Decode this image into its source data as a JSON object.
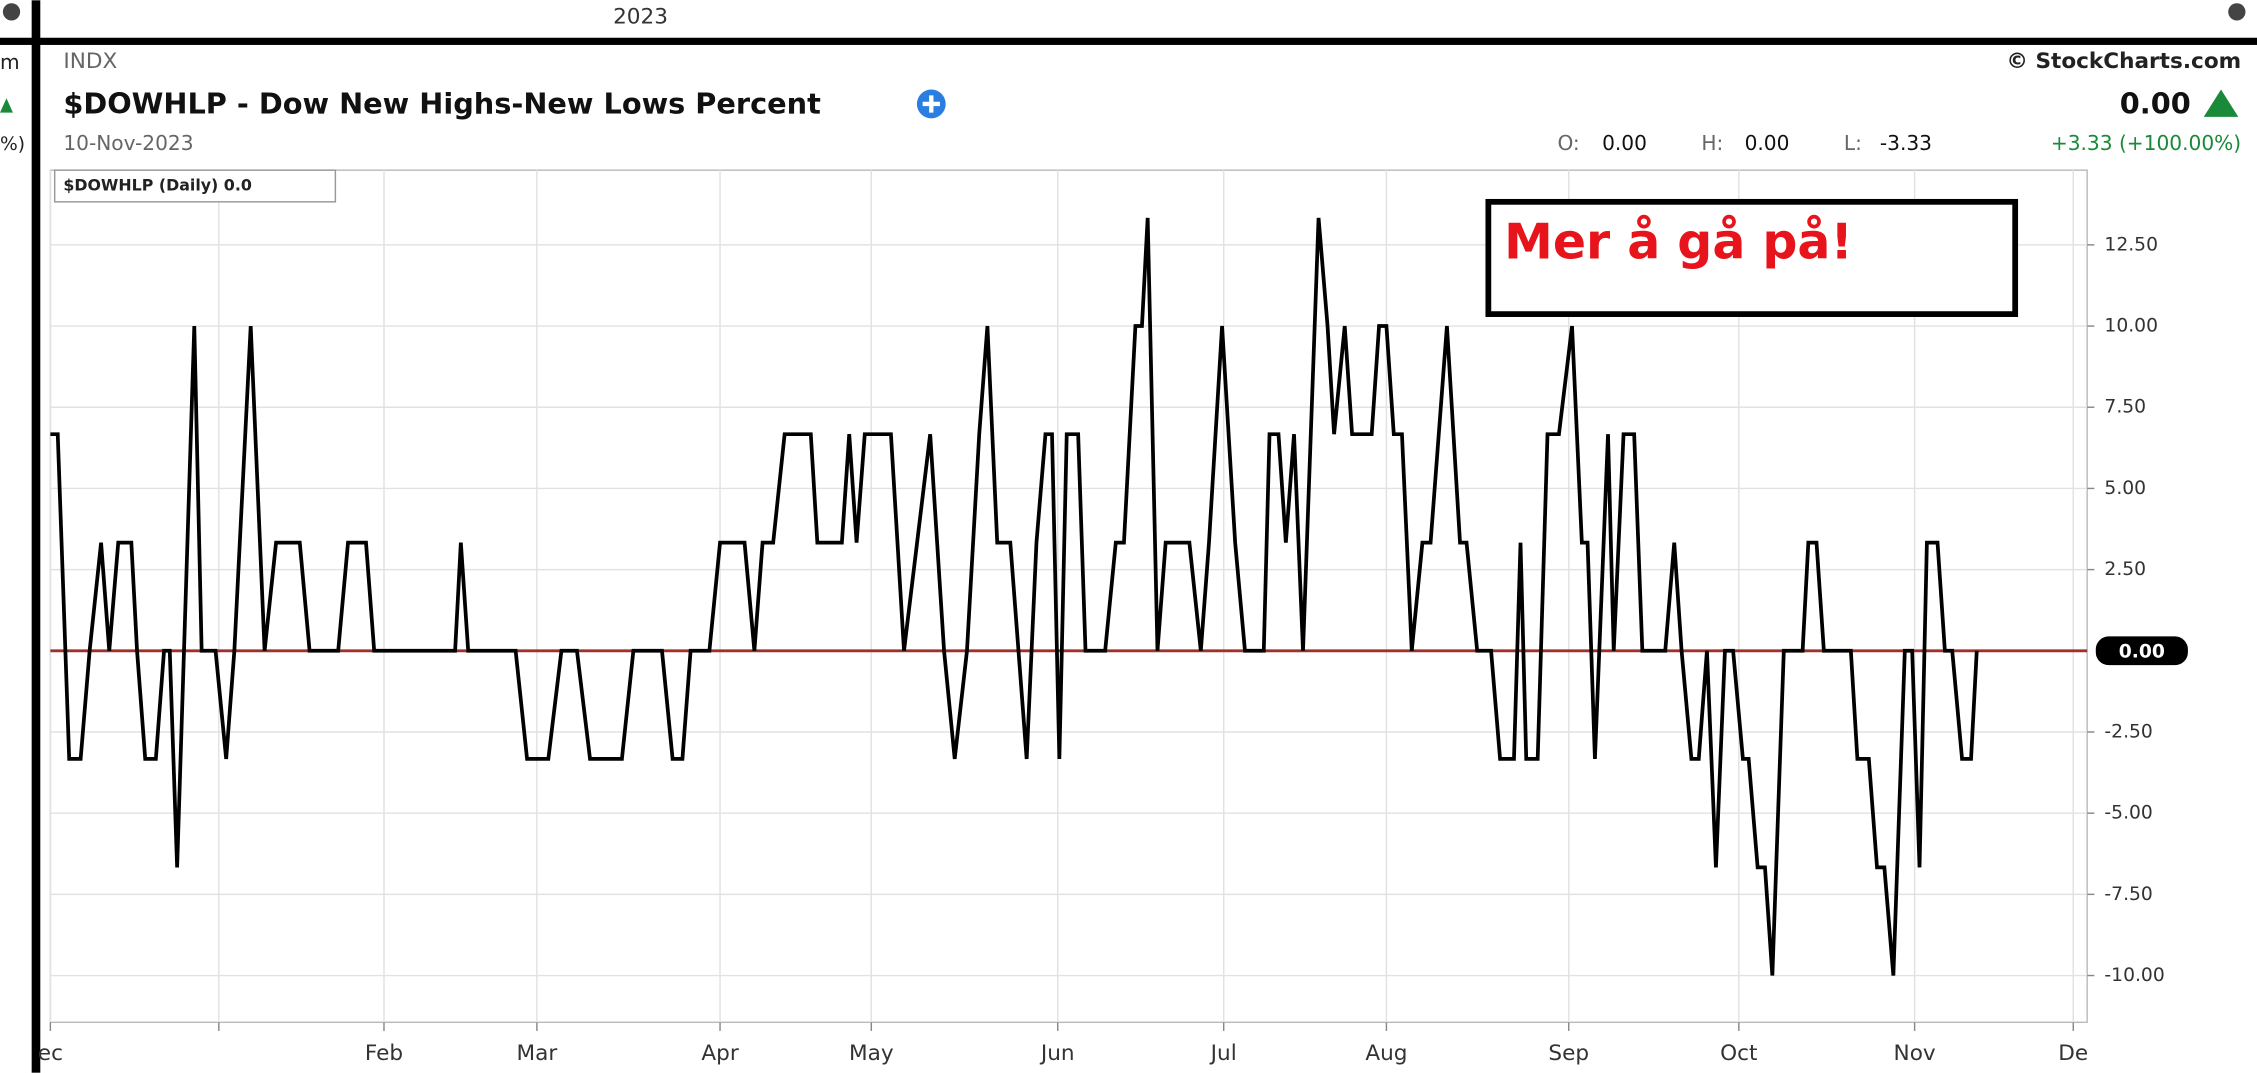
{
  "top_bar": {
    "year": "2023"
  },
  "side_fragments": [
    "m",
    "%)"
  ],
  "header": {
    "exchange": "INDX",
    "title": "$DOWHLP - Dow New Highs-New Lows Percent",
    "date": "10-Nov-2023",
    "source": "© StockCharts.com",
    "last": "0.00",
    "quote": {
      "open_label": "O:",
      "open": "0.00",
      "high_label": "H:",
      "high": "0.00",
      "low_label": "L:",
      "low": "-3.33",
      "change": "+3.33 (+100.00%)"
    }
  },
  "chart_data": {
    "type": "line",
    "annotation": "Mer å gå på!",
    "last_value_label": "0.00",
    "reference_line": {
      "value": 0,
      "color": "#a0302a"
    },
    "grid": true,
    "xlim": [
      0,
      249.1
    ],
    "ylim": [
      -11.44,
      14.8
    ],
    "xticks": [
      {
        "value": 0,
        "label": "ec"
      },
      {
        "value": 20.6,
        "label": null
      },
      {
        "value": 40.8,
        "label": "Feb"
      },
      {
        "value": 59.5,
        "label": "Mar"
      },
      {
        "value": 81.9,
        "label": "Apr"
      },
      {
        "value": 100.4,
        "label": "May"
      },
      {
        "value": 123.2,
        "label": "Jun"
      },
      {
        "value": 143.5,
        "label": "Jul"
      },
      {
        "value": 163.4,
        "label": "Aug"
      },
      {
        "value": 185.7,
        "label": "Sep"
      },
      {
        "value": 206.5,
        "label": "Oct"
      },
      {
        "value": 228.0,
        "label": "Nov"
      },
      {
        "value": 247.4,
        "label": "De"
      }
    ],
    "yticks": [
      {
        "value": 12.5,
        "label": "12.50"
      },
      {
        "value": 10,
        "label": "10.00"
      },
      {
        "value": 7.5,
        "label": "7.50"
      },
      {
        "value": 5,
        "label": "5.00"
      },
      {
        "value": 2.5,
        "label": "2.50"
      },
      {
        "value": -2.5,
        "label": "-2.50"
      },
      {
        "value": -5,
        "label": "-5.00"
      },
      {
        "value": -7.5,
        "label": "-7.50"
      },
      {
        "value": -10,
        "label": "-10.00"
      }
    ],
    "x": [
      0,
      0.9,
      2.3,
      3.7,
      4.8,
      6.2,
      7.2,
      8.3,
      9.9,
      10.6,
      11.6,
      12.9,
      13.9,
      14.6,
      15.5,
      17.6,
      18.5,
      20.2,
      21.5,
      22.5,
      24.5,
      26.2,
      27.6,
      30.5,
      31.7,
      35.2,
      36.4,
      38.6,
      39.6,
      49.5,
      50.2,
      51.1,
      56.9,
      58.3,
      60.9,
      62.5,
      64.4,
      66.0,
      69.9,
      71.3,
      74.8,
      76.1,
      77.3,
      78.3,
      80.6,
      81.9,
      84.9,
      86.1,
      87.1,
      88.4,
      89.8,
      93.0,
      93.8,
      96.8,
      97.7,
      98.6,
      99.6,
      102.8,
      104.4,
      106.0,
      107.6,
      109.3,
      110.6,
      112.1,
      113.6,
      114.6,
      115.8,
      117.4,
      119.4,
      120.6,
      121.7,
      122.5,
      123.4,
      124.3,
      125.7,
      126.6,
      129.0,
      130.3,
      131.3,
      132.7,
      133.5,
      134.2,
      135.4,
      136.4,
      139.3,
      140.7,
      141.7,
      143.3,
      144.9,
      146.1,
      148.4,
      149.1,
      150.2,
      151.1,
      152.1,
      153.2,
      155.1,
      156.2,
      157.0,
      158.3,
      159.2,
      161.6,
      162.5,
      163.4,
      164.3,
      165.3,
      166.5,
      167.8,
      168.8,
      170.8,
      172.4,
      173.2,
      174.5,
      176.2,
      177.3,
      179.0,
      179.8,
      180.5,
      181.9,
      183.1,
      184.5,
      186.1,
      187.3,
      188.0,
      188.9,
      190.5,
      191.2,
      192.4,
      193.7,
      194.7,
      197.5,
      198.6,
      199.5,
      200.7,
      201.6,
      202.6,
      203.7,
      204.8,
      205.8,
      207.0,
      207.7,
      208.8,
      209.7,
      210.6,
      212.0,
      214.3,
      215.0,
      216.0,
      216.9,
      220.2,
      221.0,
      222.4,
      223.4,
      224.3,
      225.4,
      226.8,
      227.7,
      228.6,
      229.5,
      230.8,
      231.7,
      232.6,
      233.8,
      234.9,
      235.6
    ],
    "series": [
      {
        "name": "$DOWHLP (Daily) 0.0",
        "color": "#000000",
        "values": [
          6.67,
          6.67,
          -3.33,
          -3.33,
          0,
          3.33,
          0,
          3.33,
          3.33,
          0,
          -3.33,
          -3.33,
          0,
          0,
          -6.67,
          10,
          0,
          0,
          -3.33,
          0,
          10,
          0,
          3.33,
          3.33,
          0,
          0,
          3.33,
          3.33,
          0,
          0,
          3.33,
          0,
          0,
          -3.33,
          -3.33,
          0,
          0,
          -3.33,
          -3.33,
          0,
          0,
          -3.33,
          -3.33,
          0,
          0,
          3.33,
          3.33,
          0,
          3.33,
          3.33,
          6.67,
          6.67,
          3.33,
          3.33,
          6.67,
          3.33,
          6.67,
          6.67,
          0,
          3.33,
          6.67,
          0,
          -3.33,
          0,
          6.67,
          10,
          3.33,
          3.33,
          -3.33,
          3.33,
          6.67,
          6.67,
          -3.33,
          6.67,
          6.67,
          0,
          0,
          3.33,
          3.33,
          10,
          10,
          13.33,
          0,
          3.33,
          3.33,
          0,
          3.33,
          10,
          3.33,
          0,
          0,
          6.67,
          6.67,
          3.33,
          6.67,
          0,
          13.33,
          10,
          6.67,
          10,
          6.67,
          6.67,
          10,
          10,
          6.67,
          6.67,
          0,
          3.33,
          3.33,
          10,
          3.33,
          3.33,
          0,
          0,
          -3.33,
          -3.33,
          3.33,
          -3.33,
          -3.33,
          6.67,
          6.67,
          10,
          3.33,
          3.33,
          -3.33,
          6.67,
          0,
          6.67,
          6.67,
          0,
          0,
          3.33,
          0,
          -3.33,
          -3.33,
          0,
          -6.67,
          0,
          0,
          -3.33,
          -3.33,
          -6.67,
          -6.67,
          -10,
          0,
          0,
          3.33,
          3.33,
          0,
          0,
          -3.33,
          -3.33,
          -6.67,
          -6.67,
          -10,
          0,
          0,
          -6.67,
          3.33,
          3.33,
          0,
          0,
          -3.33,
          -3.33,
          0
        ]
      }
    ]
  }
}
